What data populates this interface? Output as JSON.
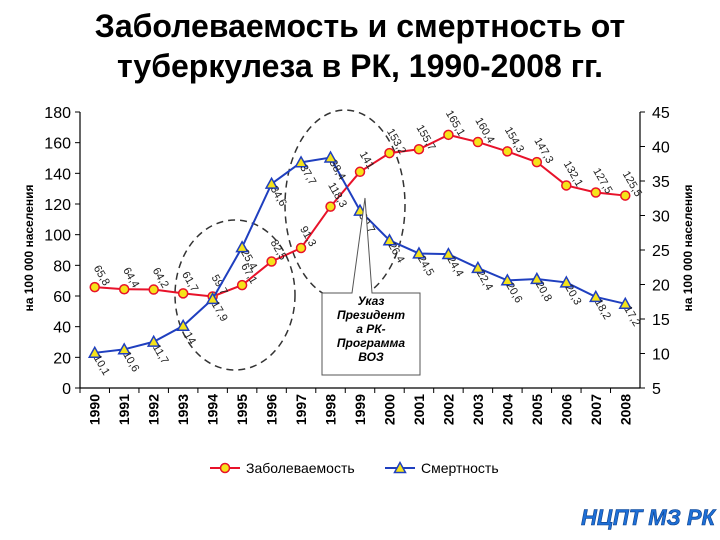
{
  "chart_data": {
    "type": "line",
    "title_lines": [
      "Заболеваемость и смертность от",
      "туберкулеза в РК, 1990-2008 гг."
    ],
    "ylabel_left": "на 100 000 населения",
    "ylabel_right": "на 100 000 населения",
    "yleft_ticks": [
      "0",
      "20",
      "40",
      "60",
      "80",
      "100",
      "120",
      "140",
      "160",
      "180"
    ],
    "yleft_lim": [
      0,
      180
    ],
    "yright_ticks": [
      "5",
      "10",
      "15",
      "20",
      "25",
      "30",
      "35",
      "40",
      "45"
    ],
    "yright_lim": [
      5,
      45
    ],
    "categories": [
      "1990",
      "1991",
      "1992",
      "1993",
      "1994",
      "1995",
      "1996",
      "1997",
      "1998",
      "1999",
      "2000",
      "2001",
      "2002",
      "2003",
      "2004",
      "2005",
      "2006",
      "2007",
      "2008"
    ],
    "series": [
      {
        "name": "Заболеваемость",
        "axis": "left",
        "color": "#e8122a",
        "marker": "circle",
        "marker_color": "#f5e31a",
        "values": [
          65.8,
          64.4,
          64.2,
          61.7,
          59.7,
          67.1,
          82.5,
          91.3,
          118.3,
          141,
          153.2,
          155.7,
          165.1,
          160.4,
          154.3,
          147.3,
          132.1,
          127.5,
          125.5
        ],
        "labels": [
          "65,8",
          "64,4",
          "64,2",
          "61,7",
          "59,7",
          "67,1",
          "82,5",
          "91,3",
          "118,3",
          "141",
          "153,2",
          "155,7",
          "165,1",
          "160,4",
          "154,3",
          "147,3",
          "132,1",
          "127,5",
          "125,5"
        ]
      },
      {
        "name": "Смертность",
        "axis": "right",
        "color": "#1f3fbf",
        "marker": "triangle",
        "marker_color": "#f5e31a",
        "values": [
          10.1,
          10.6,
          11.7,
          14,
          17.9,
          25.4,
          34.6,
          37.7,
          38.4,
          30.7,
          26.4,
          24.5,
          24.4,
          22.4,
          20.6,
          20.8,
          20.3,
          18.2,
          17.2
        ],
        "labels": [
          "10,1",
          "10,6",
          "11,7",
          "14",
          "17,9",
          "25,4",
          "34,6",
          "37,7",
          "38,4",
          "30,7",
          "26,4",
          "24,5",
          "24,4",
          "22,4",
          "20,6",
          "20,8",
          "20,3",
          "18,2",
          "17,2"
        ]
      }
    ],
    "annotation_lines": [
      "Указ",
      "Президент",
      "а РК-",
      "Программа",
      "ВОЗ"
    ]
  },
  "logo_text": "НЦПТ МЗ РК"
}
